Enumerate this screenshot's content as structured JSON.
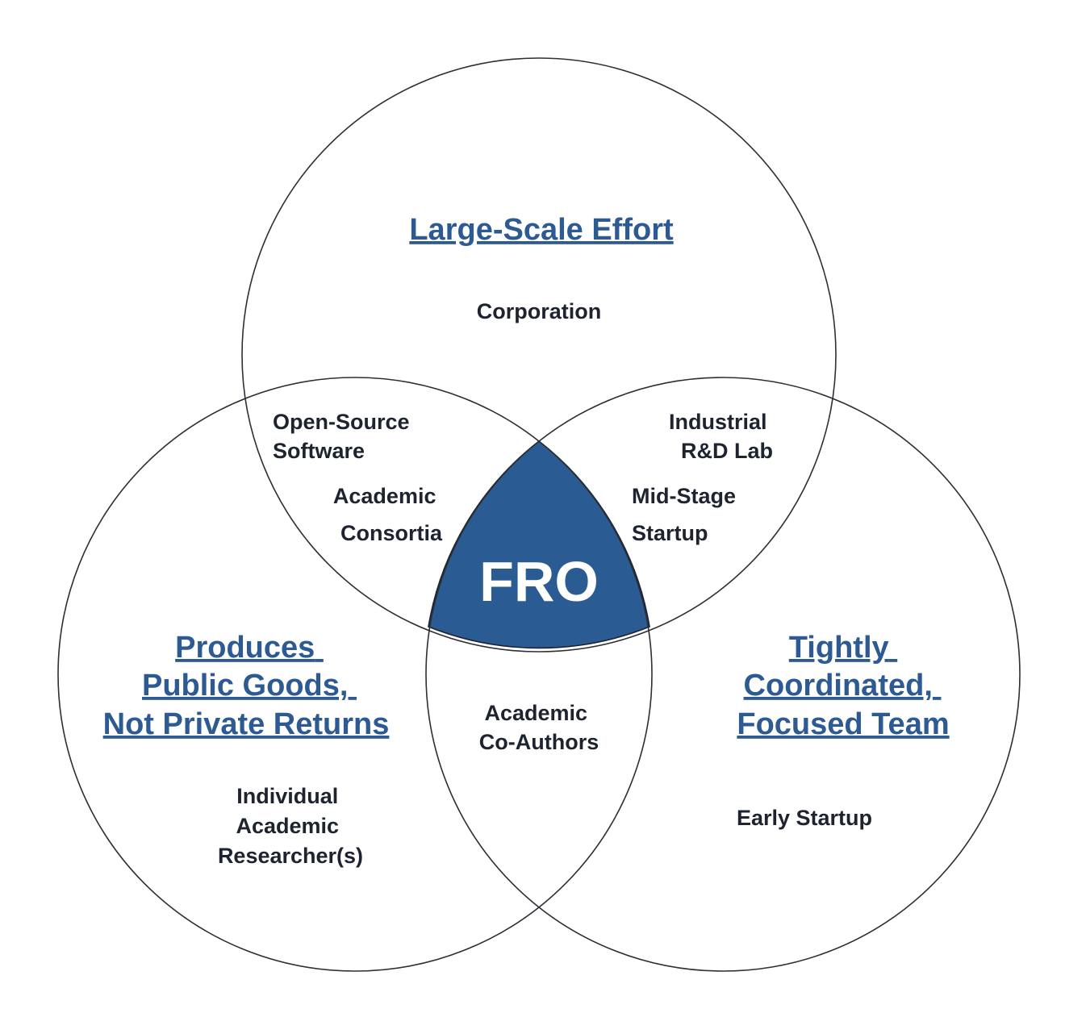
{
  "colors": {
    "accent": "#2a5b93",
    "heading": "#2d5a92",
    "text": "#1e2330",
    "center_text": "#ffffff"
  },
  "sets": {
    "top": "Large-Scale Effort",
    "left": [
      "Produces",
      "Public Goods,",
      "Not Private Returns"
    ],
    "right": [
      "Tightly",
      "Coordinated,",
      "Focused Team"
    ]
  },
  "regions": {
    "top_only": [
      "Corporation"
    ],
    "left_only": [
      "Individual",
      "Academic",
      "Researcher(s)"
    ],
    "right_only": [
      "Early Startup"
    ],
    "top_left": [
      "Open-Source",
      "Software",
      "Academic",
      "Consortia"
    ],
    "top_right": [
      "Industrial",
      "R&D Lab",
      "Mid-Stage",
      "Startup"
    ],
    "left_right": [
      "Academic",
      "Co-Authors"
    ],
    "center": "FRO"
  }
}
